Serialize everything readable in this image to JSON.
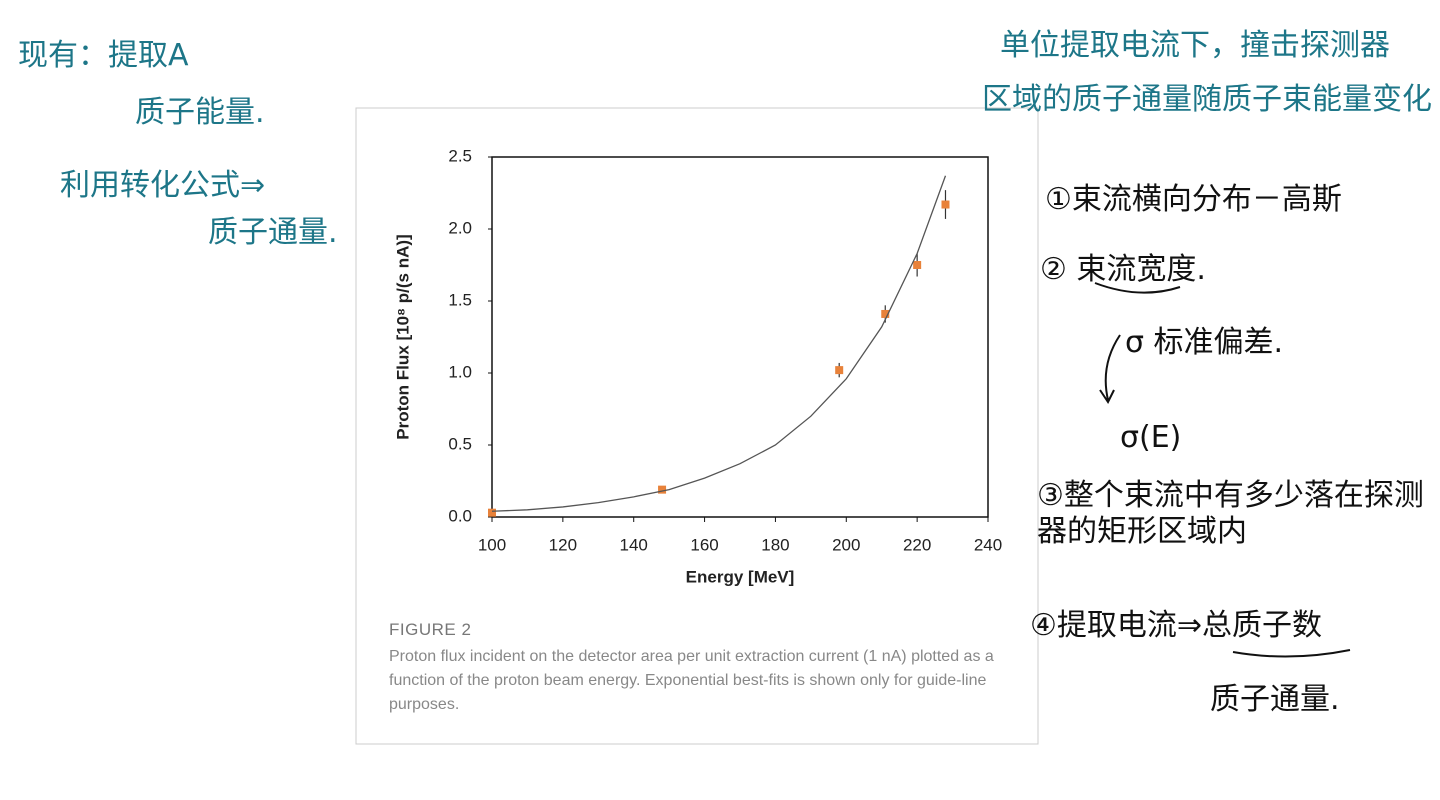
{
  "notes": {
    "left": [
      "现有：提取A",
      "质子能量.",
      "利用转化公式⇒",
      "质子通量."
    ],
    "top_right": [
      "单位提取电流下，撞击探测器",
      "区域的质子通量随质子束能量变化"
    ],
    "right": [
      "①束流横向分布－高斯",
      "② 束流宽度.",
      "σ 标准偏差.",
      "σ(E)",
      "③整个束流中有多少落在探测器的矩形区域内",
      "④提取电流⇒总质子数",
      "质子通量."
    ]
  },
  "chart_data": {
    "type": "scatter",
    "xlabel": "Energy [MeV]",
    "ylabel": "Proton Flux [10⁸ p/(s nA)]",
    "xlim": [
      100,
      240
    ],
    "xticks": [
      100,
      120,
      140,
      160,
      180,
      200,
      220,
      240
    ],
    "ylim": [
      0,
      2.5
    ],
    "yticks": [
      {
        "value": 0,
        "label": "0.0"
      },
      0.5,
      {
        "value": 1,
        "label": "1.0"
      },
      1.5,
      {
        "value": 2,
        "label": "2.0"
      },
      2.5
    ],
    "series": [
      {
        "color": "#e8823a",
        "x": [
          100,
          148,
          198,
          211,
          220,
          228
        ],
        "values": [
          0.03,
          0.19,
          1.02,
          1.41,
          1.75,
          2.17
        ],
        "errors": [
          0.01,
          0.02,
          0.05,
          0.06,
          0.08,
          0.1
        ]
      },
      {
        "color": "#555555",
        "line": true,
        "x": [
          100,
          110,
          120,
          130,
          140,
          150,
          160,
          170,
          180,
          190,
          200,
          210,
          220,
          228
        ],
        "values": [
          0.04,
          0.05,
          0.07,
          0.1,
          0.14,
          0.19,
          0.27,
          0.37,
          0.5,
          0.7,
          0.96,
          1.32,
          1.83,
          2.37
        ]
      }
    ],
    "caption_label": "FIGURE 2",
    "caption": "Proton flux incident on the detector area per unit extraction current (1 nA) plotted as a function of the proton beam energy. Exponential best-fits is shown only for guide-line purposes."
  }
}
